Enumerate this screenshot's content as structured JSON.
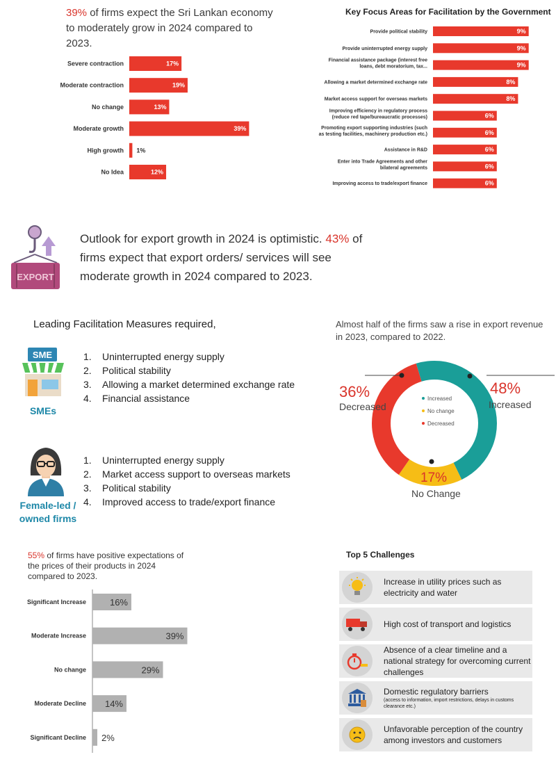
{
  "colors": {
    "accent_red": "#e8392c",
    "teal": "#1a9e98",
    "yellow": "#f6bd16",
    "grey_bar": "#b1b1b1",
    "label_blue": "#1e88a8"
  },
  "economy": {
    "headline_pct": "39%",
    "headline_rest": " of firms expect the Sri Lankan economy to moderately grow in 2024 compared to 2023."
  },
  "focus": {
    "title": "Key Focus Areas for Facilitation by the Government"
  },
  "export": {
    "icon_label": "EXPORT",
    "text_1": "Outlook for export growth in 2024 is optimistic. ",
    "pct": "43%",
    "text_2": " of firms expect that export orders/ services will see moderate growth in 2024 compared to 2023."
  },
  "measures": {
    "title": "Leading Facilitation Measures required,",
    "sme_sign": "SME",
    "sme_label": "SMEs",
    "sme_items": [
      "Uninterrupted energy supply",
      "Political stability",
      "Allowing a market determined exchange rate",
      "Financial assistance"
    ],
    "female_label": "Female-led / owned firms",
    "female_items": [
      "Uninterrupted energy supply",
      "Market access support to overseas markets",
      "Political stability",
      "Improved access to trade/export finance"
    ],
    "nums": [
      "1.",
      "2.",
      "3.",
      "4."
    ]
  },
  "revenue": {
    "title": "Almost half of the firms saw a rise in export revenue in 2023, compared to 2022.",
    "increased_pct": "48%",
    "increased_lbl": "Increased",
    "decreased_pct": "36%",
    "decreased_lbl": "Decreased",
    "nochange_pct": "17%",
    "nochange_lbl": "No Change"
  },
  "prices": {
    "headline_pct": "55%",
    "headline_rest": " of firms have positive expectations of the prices of their products in 2024 compared to 2023."
  },
  "challenges": {
    "title": "Top 5 Challenges",
    "items": [
      {
        "icon": "lightbulb-icon",
        "text": "Increase in utility prices such as electricity and water",
        "sub": ""
      },
      {
        "icon": "truck-icon",
        "text": "High cost of transport and logistics",
        "sub": ""
      },
      {
        "icon": "stopwatch-icon",
        "text": "Absence of a clear timeline and a national strategy for overcoming current challenges",
        "sub": ""
      },
      {
        "icon": "bank-icon",
        "text": "Domestic regulatory barriers",
        "sub": "(access to information, import restrictions, delays in customs clearance etc.)"
      },
      {
        "icon": "sad-face-icon",
        "text": "Unfavorable perception of the country among investors and customers",
        "sub": ""
      }
    ]
  },
  "chart_data": [
    {
      "type": "bar",
      "orientation": "horizontal",
      "categories": [
        "Severe contraction",
        "Moderate contraction",
        "No change",
        "Moderate growth",
        "High growth",
        "No Idea"
      ],
      "values": [
        17,
        19,
        13,
        39,
        1,
        12
      ],
      "value_labels": [
        "17%",
        "19%",
        "13%",
        "39%",
        "1%",
        "12%"
      ]
    },
    {
      "type": "bar",
      "orientation": "horizontal",
      "title": "Key Focus Areas for Facilitation by the Government",
      "categories": [
        [
          "Provide political stability"
        ],
        [
          "Provide uninterrupted energy supply"
        ],
        [
          "Financial assistance package (interest free",
          "loans, debt moratorium, tax..."
        ],
        [
          "Allowing a market determined exchange rate"
        ],
        [
          "Market access support for overseas markets"
        ],
        [
          "Improving efficiency in regulatory process",
          "(reduce red tape/bureaucratic processes)"
        ],
        [
          "Promoting export supporting industries (such",
          "as testing facilities, machinery production etc.)"
        ],
        [
          "Assistance in R&D"
        ],
        [
          "Enter into Trade Agreements and other",
          "bilateral agreements"
        ],
        [
          "Improving access to trade/export finance"
        ]
      ],
      "values": [
        9,
        9,
        9,
        8,
        8,
        6,
        6,
        6,
        6,
        6
      ],
      "value_labels": [
        "9%",
        "9%",
        "9%",
        "8%",
        "8%",
        "6%",
        "6%",
        "6%",
        "6%",
        "6%"
      ]
    },
    {
      "type": "pie",
      "variant": "donut",
      "labels": [
        "Increased",
        "No change",
        "Decreased"
      ],
      "values": [
        48,
        17,
        36
      ],
      "colors": [
        "#1a9e98",
        "#f6bd16",
        "#e8392c"
      ]
    },
    {
      "type": "bar",
      "orientation": "horizontal",
      "categories": [
        "Significant Increase",
        "Moderate Increase",
        "No change",
        "Moderate Decline",
        "Significant Decline"
      ],
      "values": [
        16,
        39,
        29,
        14,
        2
      ],
      "value_labels": [
        "16%",
        "39%",
        "29%",
        "14%",
        "2%"
      ]
    }
  ]
}
